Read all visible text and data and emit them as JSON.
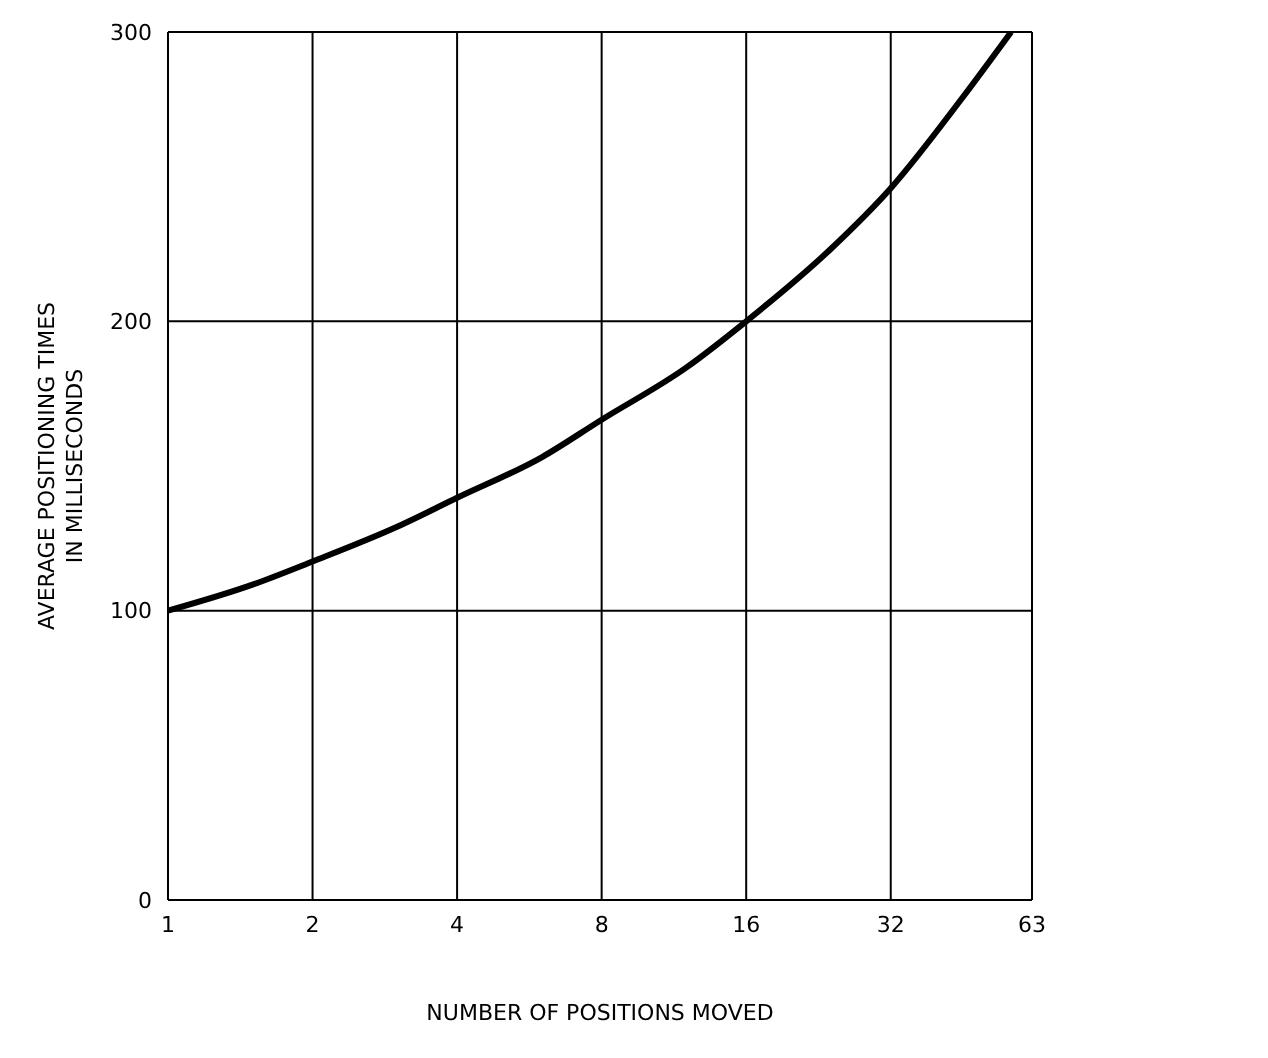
{
  "chart_data": {
    "type": "line",
    "xlabel": "NUMBER OF POSITIONS MOVED",
    "ylabel": "AVERAGE POSITIONING TIMES\nIN MILLISECONDS",
    "x": [
      1,
      1.5,
      2,
      3,
      4,
      6,
      8,
      12,
      16,
      24,
      32,
      45,
      57
    ],
    "series": [
      {
        "color": "#000000",
        "values": [
          100,
          109,
          117,
          129,
          139,
          153,
          166,
          184,
          200,
          225,
          246,
          277,
          300
        ]
      }
    ],
    "log": "x",
    "xlim": [
      1,
      63
    ],
    "xticks": [
      1,
      2,
      4,
      8,
      16,
      32,
      63
    ],
    "ylim": [
      0,
      300
    ],
    "yticks": [
      0,
      100,
      200,
      300
    ],
    "grid": true,
    "marker": "none",
    "line_style": "solid",
    "legend": false
  }
}
